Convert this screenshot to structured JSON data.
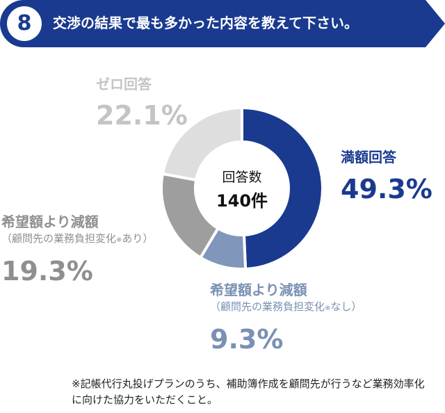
{
  "header": {
    "number": "8",
    "question": "交渉の結果で最も多かった内容を教えて下さい。",
    "color": "#1a3a8f"
  },
  "chart_data": {
    "type": "pie",
    "variant": "donut",
    "start": "top",
    "direction": "clockwise",
    "center_label": "回答数",
    "center_value": "140件",
    "slices": [
      {
        "key": "full",
        "label": "満額回答",
        "sublabel": "",
        "value": 49.3,
        "value_label": "49.3%",
        "color": "#1a3a8f"
      },
      {
        "key": "nochange",
        "label": "希望額より減額",
        "sublabel": "（顧問先の業務負担変化",
        "sublabel_mark": "※",
        "sublabel_tail": "なし）",
        "value": 9.3,
        "value_label": "9.3%",
        "color": "#8096bb"
      },
      {
        "key": "lesschange",
        "label": "希望額より減額",
        "sublabel": "（顧問先の業務負担変化",
        "sublabel_mark": "※",
        "sublabel_tail": "あり）",
        "value": 19.3,
        "value_label": "19.3%",
        "color": "#9e9e9e"
      },
      {
        "key": "zero",
        "label": "ゼロ回答",
        "sublabel": "",
        "value": 22.1,
        "value_label": "22.1%",
        "color": "#dedede"
      }
    ]
  },
  "footnote": {
    "text": "※記帳代行丸投げプランのうち、補助簿作成を顧問先が行うなど業務効率化に向けた協力をいただくこと。"
  }
}
